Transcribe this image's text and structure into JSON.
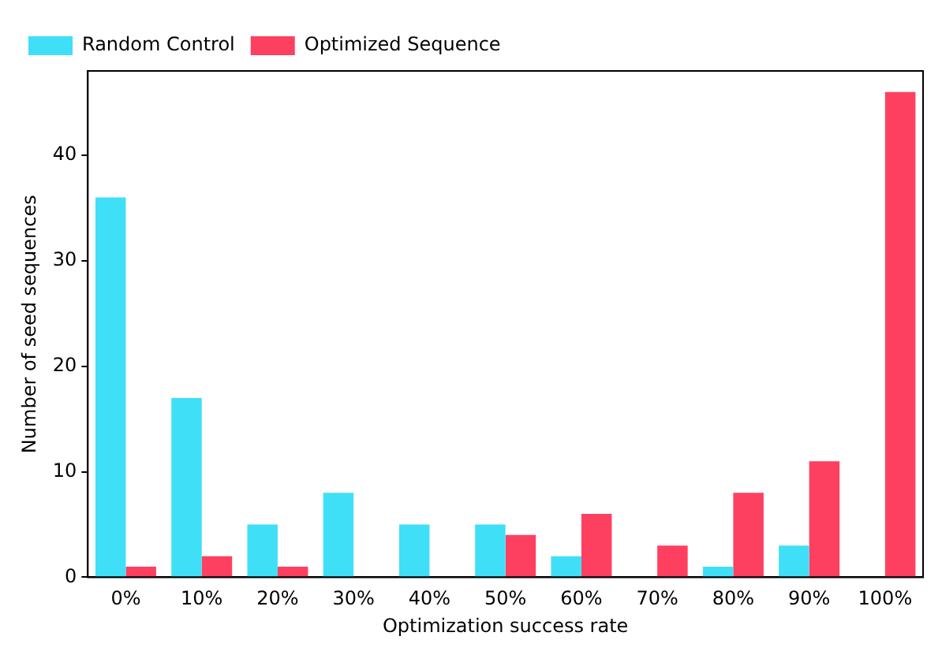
{
  "chart_data": {
    "type": "bar",
    "xlabel": "Optimization success rate",
    "ylabel": "Number of seed sequences",
    "categories": [
      "0%",
      "10%",
      "20%",
      "30%",
      "40%",
      "50%",
      "60%",
      "70%",
      "80%",
      "90%",
      "100%"
    ],
    "series": [
      {
        "name": "Random Control",
        "color": "#40dff8",
        "values": [
          36,
          17,
          5,
          8,
          5,
          5,
          2,
          0,
          1,
          3,
          0
        ]
      },
      {
        "name": "Optimized Sequence",
        "color": "#fe4060",
        "values": [
          1,
          2,
          1,
          0,
          0,
          4,
          6,
          3,
          8,
          11,
          46
        ]
      }
    ],
    "ylim": [
      0,
      48
    ],
    "yticks": [
      0,
      10,
      20,
      30,
      40
    ],
    "grid": false,
    "legend": "top left"
  }
}
